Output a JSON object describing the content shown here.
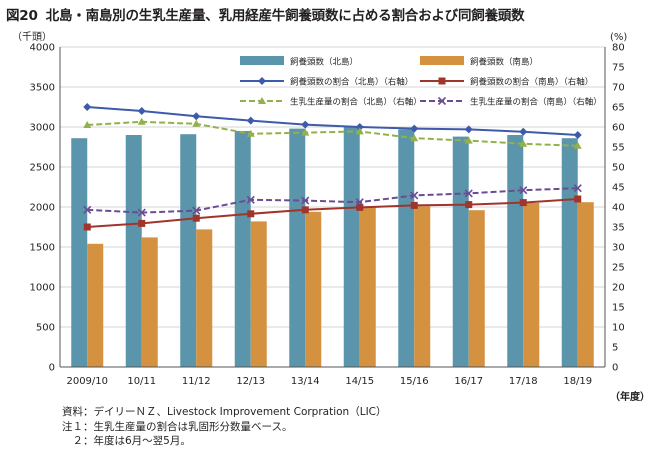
{
  "figure_number": "図20",
  "title": "北島・南島別の生乳生産量、乳用経産牛飼養頭数に占める割合および同飼養頭数",
  "notes": [
    "資料：デイリーＮＺ、Livestock Improvement Corpration（LIC）",
    "注１：生乳生産量の割合は乳固形分数量ベース。",
    "　２：年度は6月～翌5月。"
  ],
  "colors": {
    "north_bar": "#5b95ab",
    "south_bar": "#d4913f",
    "north_head_line": "#3d5ba9",
    "south_head_line": "#a0352c",
    "north_milk_line": "#92b14a",
    "south_milk_line": "#6a4c93"
  },
  "chart_data": {
    "type": "bar",
    "categories": [
      "2009/10",
      "10/11",
      "11/12",
      "12/13",
      "13/14",
      "14/15",
      "15/16",
      "16/17",
      "17/18",
      "18/19"
    ],
    "xlabel": "（年度）",
    "ylabel": "（千頭）",
    "y2label": "(%)",
    "ylim": [
      0,
      4000
    ],
    "y2lim": [
      0,
      80
    ],
    "yticks": [
      0,
      500,
      1000,
      1500,
      2000,
      2500,
      3000,
      3500,
      4000
    ],
    "y2ticks": [
      0,
      5,
      10,
      15,
      20,
      25,
      30,
      35,
      40,
      45,
      50,
      55,
      60,
      65,
      70,
      75,
      80
    ],
    "grid": true,
    "legend_position": "top",
    "series": [
      {
        "name": "飼養頭数（北島）",
        "kind": "bar",
        "axis": "left",
        "values": [
          2860,
          2900,
          2910,
          2950,
          2980,
          3010,
          2970,
          2880,
          2900,
          2860
        ]
      },
      {
        "name": "飼養頭数（南島）",
        "kind": "bar",
        "axis": "left",
        "values": [
          1540,
          1620,
          1720,
          1820,
          1940,
          2000,
          2010,
          1960,
          2050,
          2060
        ]
      },
      {
        "name": "飼養頭数の割合（北島）（右軸）",
        "kind": "line",
        "axis": "right",
        "marker": "diamond",
        "values": [
          65.0,
          64.0,
          62.7,
          61.6,
          60.6,
          60.0,
          59.6,
          59.4,
          58.8,
          58.0
        ]
      },
      {
        "name": "飼養頭数の割合（南島）（右軸）",
        "kind": "line",
        "axis": "right",
        "marker": "square",
        "values": [
          35.0,
          35.9,
          37.2,
          38.3,
          39.3,
          39.9,
          40.4,
          40.6,
          41.1,
          42.0
        ]
      },
      {
        "name": "生乳生産量の割合（北島）（右軸）",
        "kind": "line",
        "axis": "right",
        "marker": "triangle",
        "dashed": true,
        "values": [
          60.5,
          61.3,
          60.8,
          58.3,
          58.6,
          58.9,
          57.2,
          56.6,
          55.8,
          55.3
        ]
      },
      {
        "name": "生乳生産量の割合（南島）（右軸）",
        "kind": "line",
        "axis": "right",
        "marker": "x",
        "dashed": true,
        "values": [
          39.3,
          38.6,
          39.1,
          41.8,
          41.6,
          41.2,
          42.9,
          43.4,
          44.2,
          44.7
        ]
      }
    ]
  }
}
